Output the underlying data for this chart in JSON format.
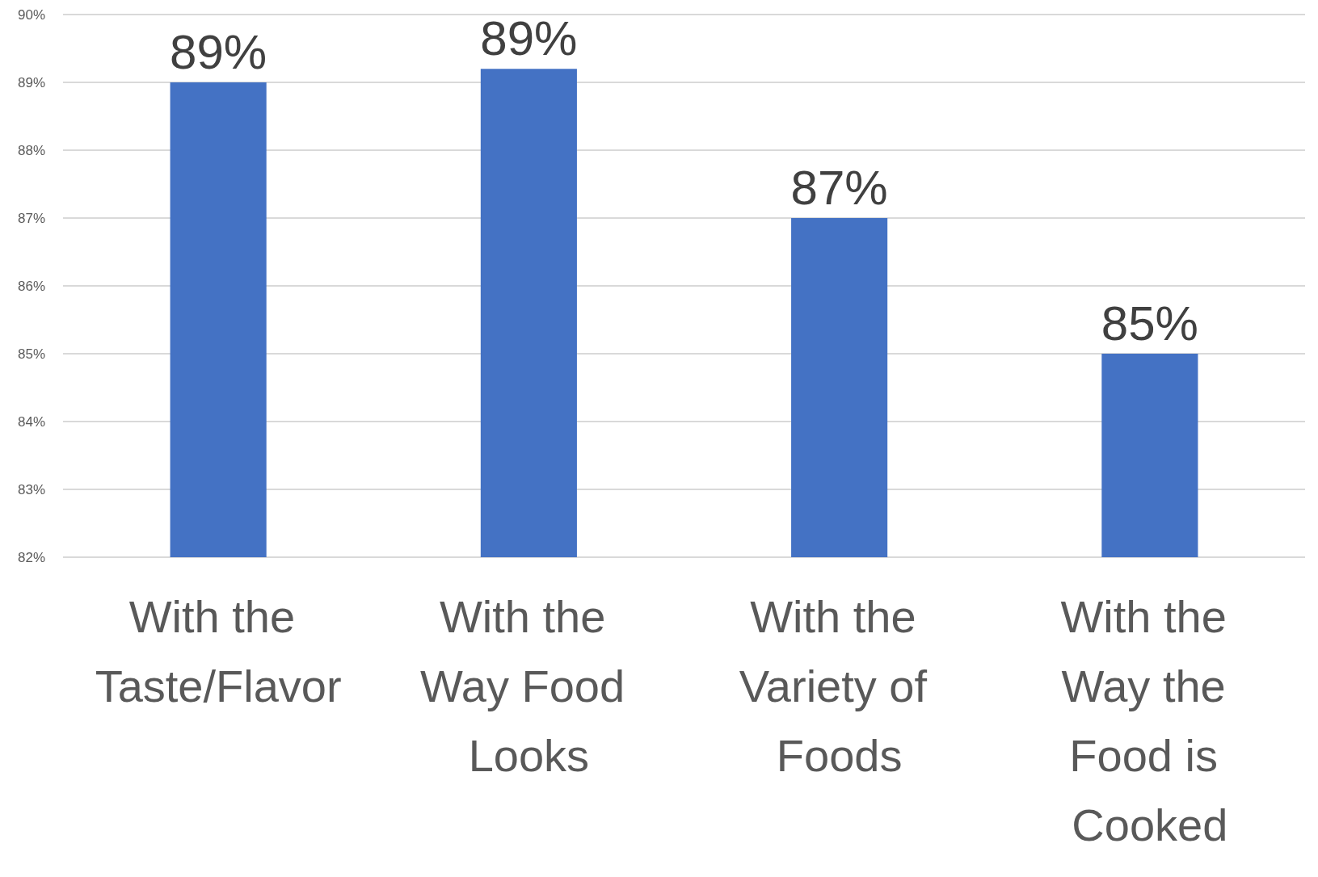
{
  "chart_data": {
    "type": "bar",
    "categories": [
      "With the Taste/Flavor",
      "With the Way Food Looks",
      "With the Variety of Foods",
      "With the Way the Food is Cooked"
    ],
    "values": [
      89,
      89.2,
      87,
      85
    ],
    "value_labels": [
      "89%",
      "89%",
      "87%",
      "85%"
    ],
    "color": "#4472c4",
    "ylim": [
      82,
      90
    ],
    "yticks": [
      {
        "value": 82,
        "label": "82%"
      },
      {
        "value": 83,
        "label": "83%"
      },
      {
        "value": 84,
        "label": "84%"
      },
      {
        "value": 85,
        "label": "85%"
      },
      {
        "value": 86,
        "label": "86%"
      },
      {
        "value": 87,
        "label": "87%"
      },
      {
        "value": 88,
        "label": "88%"
      },
      {
        "value": 89,
        "label": "89%"
      },
      {
        "value": 90,
        "label": "90%"
      }
    ],
    "grid": "y"
  }
}
